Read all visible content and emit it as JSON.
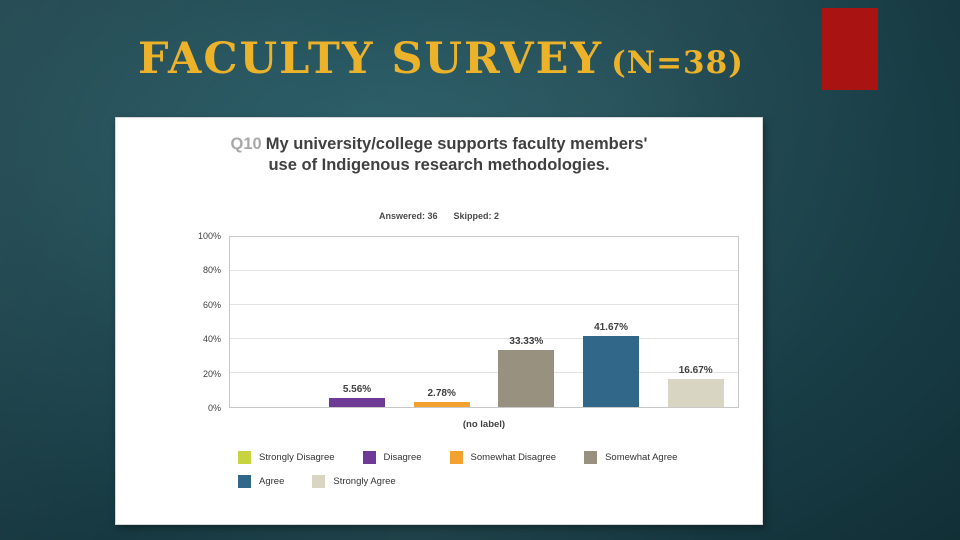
{
  "slide": {
    "title": "FACULTY SURVEY",
    "title_suffix": "(N=38)",
    "title_color": "#ecb32a",
    "accent_block_color": "#a91312",
    "background_color": "#1e464f"
  },
  "chart_data": {
    "type": "bar",
    "title_prefix": "Q10",
    "title": "My university/college supports faculty members' use of Indigenous research methodologies.",
    "answered_label": "Answered: 36",
    "skipped_label": "Skipped: 2",
    "categories": [
      "Strongly Disagree",
      "Disagree",
      "Somewhat Disagree",
      "Somewhat Agree",
      "Agree",
      "Strongly Agree"
    ],
    "values": [
      0,
      5.56,
      2.78,
      33.33,
      41.67,
      16.67
    ],
    "value_labels": [
      "",
      "5.56%",
      "2.78%",
      "33.33%",
      "41.67%",
      "16.67%"
    ],
    "colors": [
      "#c7d33f",
      "#6f3a96",
      "#f2a12e",
      "#98917f",
      "#31688a",
      "#d9d5c3"
    ],
    "xlabel": "(no label)",
    "ylabel": "",
    "ylim": [
      0,
      100
    ],
    "ytick_labels": [
      "0%",
      "20%",
      "40%",
      "60%",
      "80%",
      "100%"
    ],
    "grid": true,
    "legend_position": "bottom",
    "legend_rows": [
      4,
      2
    ]
  }
}
